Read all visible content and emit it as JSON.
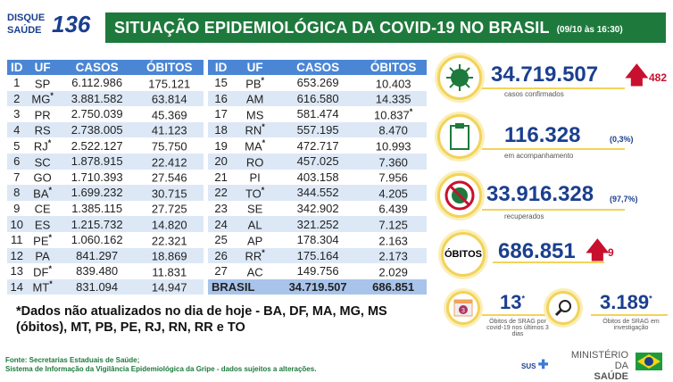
{
  "logo": {
    "line1": "DISQUE",
    "line2": "SAÚDE",
    "number": "136"
  },
  "header": {
    "title": "SITUAÇÃO EPIDEMIOLÓGICA DA COVID-19 NO BRASIL",
    "datetime": "(09/10 às 16:30)"
  },
  "table_headers": [
    "ID",
    "UF",
    "CASOS",
    "ÓBITOS"
  ],
  "table1": [
    [
      "1",
      "SP",
      "",
      "6.112.986",
      "175.121",
      ""
    ],
    [
      "2",
      "MG",
      "*",
      "3.881.582",
      "63.814",
      ""
    ],
    [
      "3",
      "PR",
      "",
      "2.750.039",
      "45.369",
      ""
    ],
    [
      "4",
      "RS",
      "",
      "2.738.005",
      "41.123",
      ""
    ],
    [
      "5",
      "RJ",
      "*",
      "2.522.127",
      "75.750",
      ""
    ],
    [
      "6",
      "SC",
      "",
      "1.878.915",
      "22.412",
      ""
    ],
    [
      "7",
      "GO",
      "",
      "1.710.393",
      "27.546",
      ""
    ],
    [
      "8",
      "BA",
      "*",
      "1.699.232",
      "30.715",
      ""
    ],
    [
      "9",
      "CE",
      "",
      "1.385.115",
      "27.725",
      ""
    ],
    [
      "10",
      "ES",
      "",
      "1.215.732",
      "14.820",
      ""
    ],
    [
      "11",
      "PE",
      "*",
      "1.060.162",
      "22.321",
      ""
    ],
    [
      "12",
      "PA",
      "",
      "841.297",
      "18.869",
      ""
    ],
    [
      "13",
      "DF",
      "*",
      "839.480",
      "11.831",
      ""
    ],
    [
      "14",
      "MT",
      "*",
      "831.094",
      "14.947",
      ""
    ]
  ],
  "table2": [
    [
      "15",
      "PB",
      "*",
      "653.269",
      "10.403",
      ""
    ],
    [
      "16",
      "AM",
      "",
      "616.580",
      "14.335",
      ""
    ],
    [
      "17",
      "MS",
      "",
      "581.474",
      "10.837",
      "*"
    ],
    [
      "18",
      "RN",
      "*",
      "557.195",
      "8.470",
      ""
    ],
    [
      "19",
      "MA",
      "*",
      "472.717",
      "10.993",
      ""
    ],
    [
      "20",
      "RO",
      "",
      "457.025",
      "7.360",
      ""
    ],
    [
      "21",
      "PI",
      "",
      "403.158",
      "7.956",
      ""
    ],
    [
      "22",
      "TO",
      "*",
      "344.552",
      "4.205",
      ""
    ],
    [
      "23",
      "SE",
      "",
      "342.902",
      "6.439",
      ""
    ],
    [
      "24",
      "AL",
      "",
      "321.252",
      "7.125",
      ""
    ],
    [
      "25",
      "AP",
      "",
      "178.304",
      "2.163",
      ""
    ],
    [
      "26",
      "RR",
      "*",
      "175.164",
      "2.173",
      ""
    ],
    [
      "27",
      "AC",
      "",
      "149.756",
      "2.029",
      ""
    ]
  ],
  "total": {
    "label": "BRASIL",
    "casos": "34.719.507",
    "obitos": "686.851"
  },
  "footnote": "*Dados não atualizados no dia de hoje - BA, DF, MA, MG, MS (óbitos), MT, PB, PE, RJ, RN, RR e TO",
  "sources": {
    "line1": "Fonte: Secretarias Estaduais de Saúde;",
    "line2": "Sistema de Informação da Vigilância Epidemiológica da Gripe - dados sujeitos a alterações."
  },
  "stats": {
    "confirmed": {
      "value": "34.719.507",
      "increase": "482",
      "label": "casos confirmados",
      "icon": "virus-icon"
    },
    "monitoring": {
      "value": "116.328",
      "pct": "(0,3%)",
      "label": "em acompanhamento",
      "icon": "clipboard-icon"
    },
    "recovered": {
      "value": "33.916.328",
      "pct": "(97,7%)",
      "label": "recuperados",
      "icon": "no-virus-icon"
    },
    "deaths": {
      "badge": "ÓBITOS",
      "value": "686.851",
      "increase": "9"
    },
    "srag_recent": {
      "value": "13",
      "mark": "*",
      "label": "Óbitos de SRAG por covid-19 nos últimos 3 dias",
      "calendar_number": "3"
    },
    "srag_investigation": {
      "value": "3.189",
      "mark": "*",
      "label": "Óbitos de SRAG em investigação"
    }
  },
  "footer_logos": {
    "sus": "SUS",
    "ministry_line1": "MINISTÉRIO DA",
    "ministry_line2": "SAÚDE"
  },
  "colors": {
    "green": "#1e7a3c",
    "blue": "#4a86d4",
    "navy": "#1b3f8f",
    "red": "#c8102e",
    "yellow": "#f2d35a"
  }
}
